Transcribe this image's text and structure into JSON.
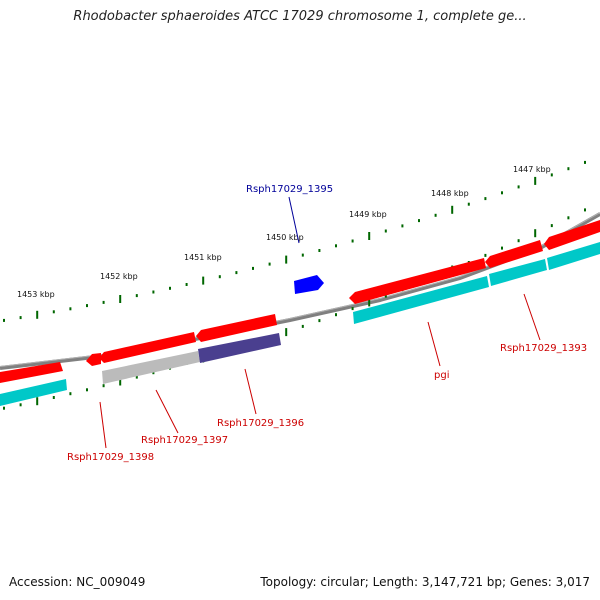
{
  "title": "Rhodobacter sphaeroides ATCC 17029 chromosome 1, complete ge...",
  "footer": {
    "accession": "Accession: NC_009049",
    "summary": "Topology: circular; Length: 3,147,721 bp; Genes: 3,017"
  },
  "scale_ticks": [
    {
      "label": "1453 kbp"
    },
    {
      "label": "1452 kbp"
    },
    {
      "label": "1451 kbp"
    },
    {
      "label": "1450 kbp"
    },
    {
      "label": "1449 kbp"
    },
    {
      "label": "1448 kbp"
    },
    {
      "label": "1447 kbp"
    }
  ],
  "gene_labels": {
    "rsph1395": "Rsph17029_1395",
    "rsph1393": "Rsph17029_1393",
    "pgi": "pgi",
    "rsph1396": "Rsph17029_1396",
    "rsph1397": "Rsph17029_1397",
    "rsph1398": "Rsph17029_1398"
  },
  "colors": {
    "gene_red": "#ff0000",
    "cds_cyan": "#00c8c8",
    "selected_blue": "#0000ff",
    "highlight_purple": "#4a3f8f",
    "pseudo_grey": "#bbbbbb",
    "backbone_grey": "#808080",
    "tick_green": "#006600",
    "label_red": "#cc0000",
    "label_blue": "#000099"
  }
}
